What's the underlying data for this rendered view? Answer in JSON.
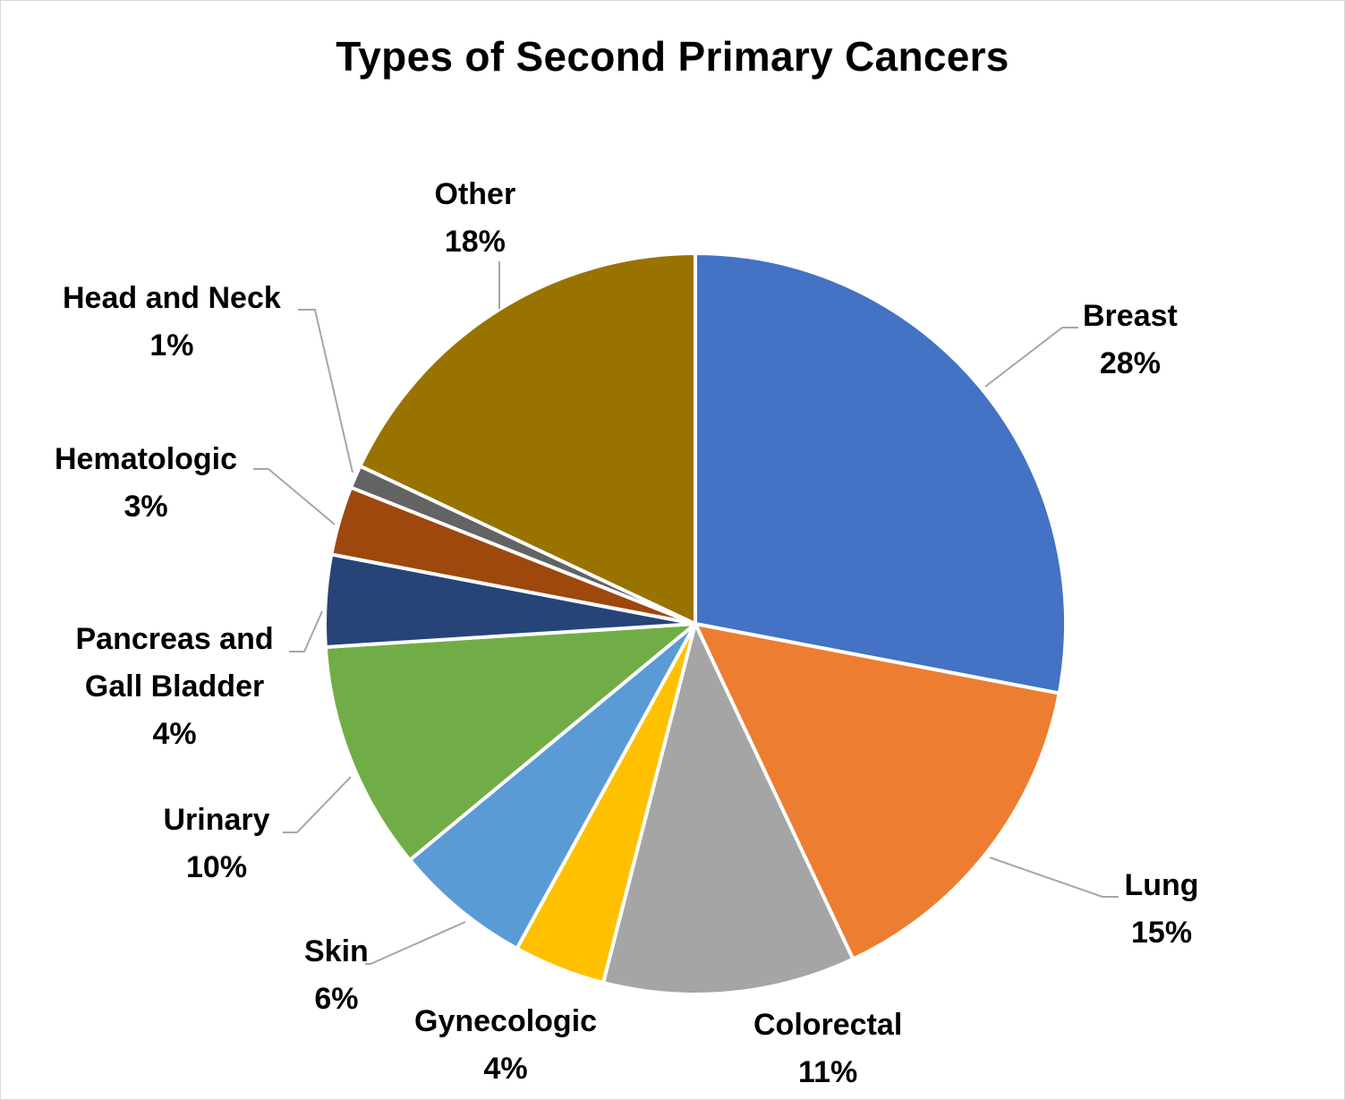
{
  "chart_data": {
    "type": "pie",
    "title": "Types of Second Primary Cancers",
    "slices": [
      {
        "label": "Breast",
        "value": 28,
        "pct_label": "28%",
        "color": "#4472C4"
      },
      {
        "label": "Lung",
        "value": 15,
        "pct_label": "15%",
        "color": "#ED7D31"
      },
      {
        "label": "Colorectal",
        "value": 11,
        "pct_label": "11%",
        "color": "#A5A5A5"
      },
      {
        "label": "Gynecologic",
        "value": 4,
        "pct_label": "4%",
        "color": "#FFC000"
      },
      {
        "label": "Skin",
        "value": 6,
        "pct_label": "6%",
        "color": "#5B9BD5"
      },
      {
        "label": "Urinary",
        "value": 10,
        "pct_label": "10%",
        "color": "#70AD47"
      },
      {
        "label": "Pancreas and Gall Bladder",
        "label_lines": [
          "Pancreas and",
          "Gall Bladder"
        ],
        "value": 4,
        "pct_label": "4%",
        "color": "#264478"
      },
      {
        "label": "Hematologic",
        "value": 3,
        "pct_label": "3%",
        "color": "#9E480E"
      },
      {
        "label": "Head and Neck",
        "value": 1,
        "pct_label": "1%",
        "color": "#636363"
      },
      {
        "label": "Other",
        "value": 18,
        "pct_label": "18%",
        "color": "#997300"
      }
    ],
    "start_angle": "12 o'clock",
    "direction": "clockwise",
    "data_labels": "category name and percentage",
    "leader_line_color": "#A6A6A6"
  }
}
